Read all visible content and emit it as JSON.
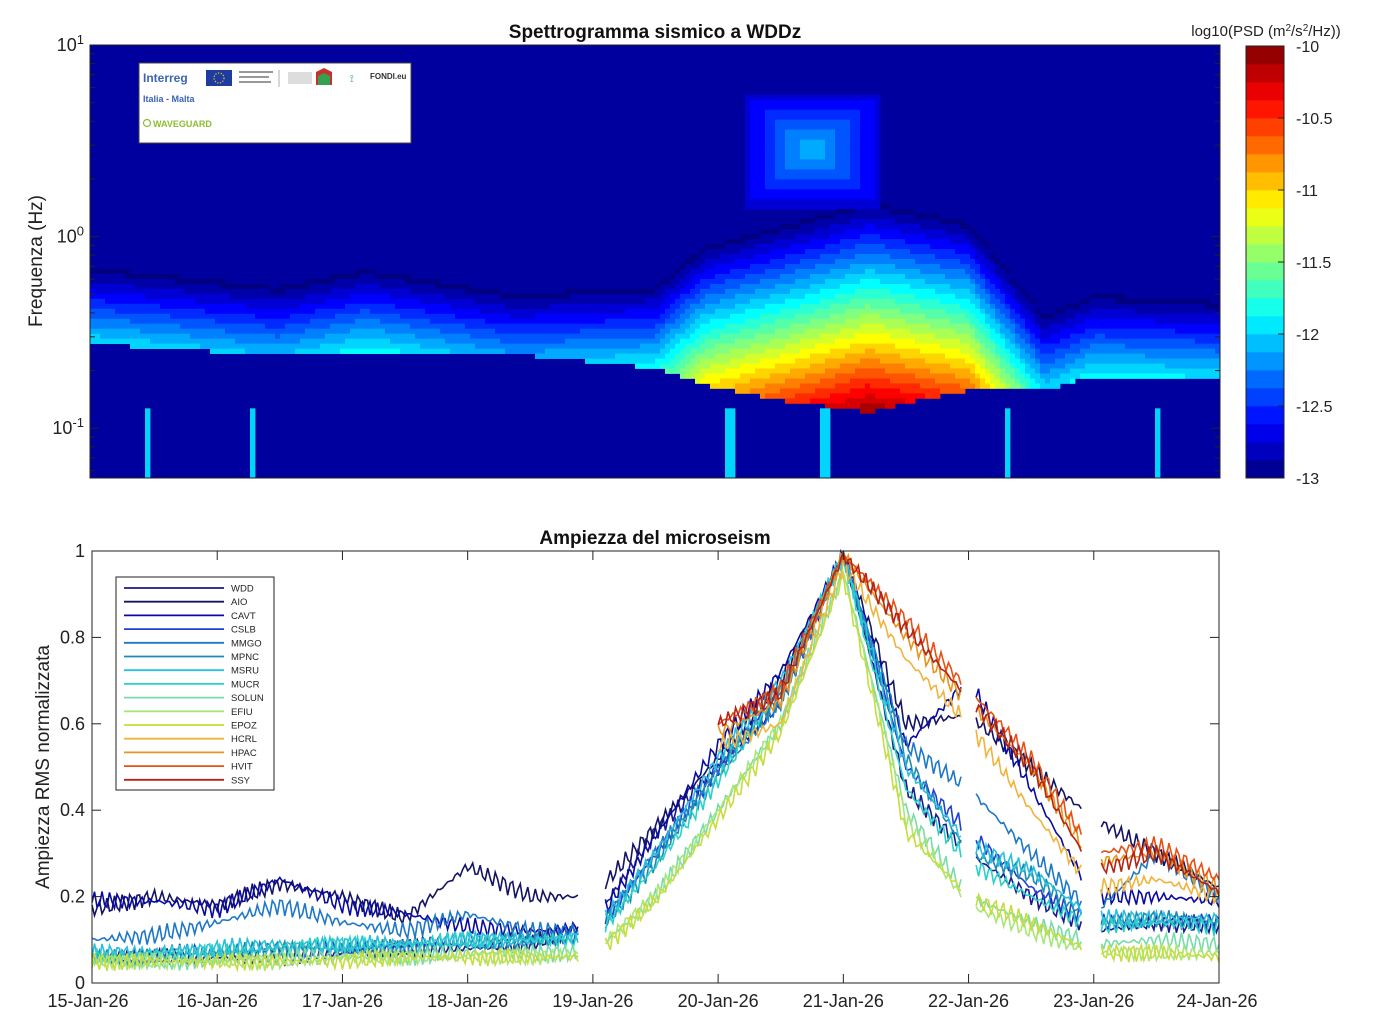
{
  "chart_data": [
    {
      "type": "heatmap",
      "title": "Spettrogramma sismico a WDDz",
      "ylabel": "Frequenza (Hz)",
      "yscale": "log",
      "ylim": [
        0.055,
        10
      ],
      "yticks": [
        {
          "base": "10",
          "exp": "1"
        },
        {
          "base": "10",
          "exp": "0"
        },
        {
          "base": "10",
          "exp": "-1"
        }
      ],
      "x_days": [
        0,
        9
      ],
      "colorbar": {
        "label_prefix": "log10(PSD (m",
        "label_sup1": "2",
        "label_mid": "/s",
        "label_sup2": "2",
        "label_suffix": "/Hz))",
        "range": [
          -13,
          -10
        ],
        "ticks": [
          "-10",
          "-10.5",
          "-11",
          "-11.5",
          "-12",
          "-12.5",
          "-13"
        ],
        "steps": 24
      },
      "energy_band": {
        "day": [
          0,
          0.5,
          1.5,
          2.2,
          3.4,
          4.5,
          4.9,
          5.5,
          6.2,
          7.0,
          7.6,
          8.0,
          9.0
        ],
        "lower_hz": [
          0.3,
          0.28,
          0.26,
          0.27,
          0.26,
          0.22,
          0.18,
          0.15,
          0.13,
          0.17,
          0.17,
          0.2,
          0.2
        ],
        "peak_level": [
          -11.9,
          -11.9,
          -12.0,
          -11.8,
          -12.1,
          -11.8,
          -11.0,
          -10.5,
          -10.0,
          -10.6,
          -11.9,
          -11.8,
          -11.9
        ]
      },
      "logo": {
        "interreg": "Interreg",
        "region": "Italia - Malta",
        "project": "WAVEGUARD",
        "fund": "FONDI.eu"
      }
    },
    {
      "type": "line",
      "title": "Ampiezza del microseism",
      "ylabel": "Ampiezza RMS normalizzata",
      "ylim": [
        0,
        1
      ],
      "yticks": [
        "0",
        "0.2",
        "0.4",
        "0.6",
        "0.8",
        "1"
      ],
      "categories": [
        "15-Jan-26",
        "16-Jan-26",
        "17-Jan-26",
        "18-Jan-26",
        "19-Jan-26",
        "20-Jan-26",
        "21-Jan-26",
        "22-Jan-26",
        "23-Jan-26",
        "24-Jan-26"
      ],
      "gaps": [
        [
          3.9,
          4.1
        ],
        [
          6.95,
          7.05
        ],
        [
          7.9,
          8.05
        ]
      ],
      "series": [
        {
          "name": "WDD",
          "color": "#1a1a8c",
          "x": [
            0,
            0.5,
            1,
            1.5,
            2,
            2.5,
            3,
            3.5,
            4,
            4.5,
            5,
            5.5,
            6,
            6.5,
            7,
            7.5,
            8,
            8.5,
            9
          ],
          "y": [
            0.06,
            0.06,
            0.06,
            0.06,
            0.07,
            0.08,
            0.08,
            0.09,
            0.14,
            0.35,
            0.5,
            0.65,
            0.99,
            0.45,
            0.3,
            0.2,
            0.12,
            0.14,
            0.13
          ]
        },
        {
          "name": "AIO",
          "color": "#141464",
          "x": [
            0,
            0.5,
            1,
            1.5,
            2,
            2.5,
            3,
            3.5,
            4,
            4.5,
            5,
            5.5,
            6,
            6.5,
            7,
            7.5,
            8,
            8.5,
            9
          ],
          "y": [
            0.17,
            0.2,
            0.18,
            0.23,
            0.2,
            0.15,
            0.27,
            0.2,
            0.2,
            0.36,
            0.52,
            0.7,
            0.99,
            0.6,
            0.62,
            0.5,
            0.38,
            0.3,
            0.22
          ]
        },
        {
          "name": "CAVT",
          "color": "#0a0aa0",
          "x": [
            0,
            0.5,
            1,
            1.5,
            2,
            2.5,
            3,
            3.5,
            4,
            4.5,
            5,
            5.5,
            6,
            6.5,
            7,
            7.5,
            8,
            8.5,
            9
          ],
          "y": [
            0.19,
            0.19,
            0.17,
            0.24,
            0.18,
            0.16,
            0.13,
            0.12,
            0.13,
            0.34,
            0.55,
            0.72,
            0.99,
            0.55,
            0.7,
            0.45,
            0.2,
            0.2,
            0.19
          ]
        },
        {
          "name": "CSLB",
          "color": "#2040d0",
          "x": [
            0,
            0.5,
            1,
            1.5,
            2,
            2.5,
            3,
            3.5,
            4,
            4.5,
            5,
            5.5,
            6,
            6.5,
            7,
            7.5,
            8,
            8.5,
            9
          ],
          "y": [
            0.06,
            0.07,
            0.07,
            0.08,
            0.08,
            0.09,
            0.1,
            0.1,
            0.11,
            0.3,
            0.5,
            0.68,
            0.99,
            0.5,
            0.35,
            0.22,
            0.14,
            0.14,
            0.14
          ]
        },
        {
          "name": "MMGO",
          "color": "#1e78c8",
          "x": [
            0,
            0.5,
            1,
            1.5,
            2,
            2.5,
            3,
            3.5,
            4,
            4.5,
            5,
            5.5,
            6,
            6.5,
            7,
            7.5,
            8,
            8.5,
            9
          ],
          "y": [
            0.1,
            0.11,
            0.14,
            0.18,
            0.14,
            0.12,
            0.16,
            0.12,
            0.12,
            0.3,
            0.48,
            0.65,
            0.99,
            0.55,
            0.45,
            0.3,
            0.16,
            0.3,
            0.2
          ]
        },
        {
          "name": "MPNC",
          "color": "#1c8cb4",
          "x": [
            0,
            0.5,
            1,
            1.5,
            2,
            2.5,
            3,
            3.5,
            4,
            4.5,
            5,
            5.5,
            6,
            6.5,
            7,
            7.5,
            8,
            8.5,
            9
          ],
          "y": [
            0.06,
            0.06,
            0.07,
            0.08,
            0.08,
            0.08,
            0.09,
            0.1,
            0.1,
            0.28,
            0.5,
            0.66,
            0.99,
            0.52,
            0.3,
            0.25,
            0.14,
            0.15,
            0.14
          ]
        },
        {
          "name": "MSRU",
          "color": "#28c0dc",
          "x": [
            0,
            0.5,
            1,
            1.5,
            2,
            2.5,
            3,
            3.5,
            4,
            4.5,
            5,
            5.5,
            6,
            6.5,
            7,
            7.5,
            8,
            8.5,
            9
          ],
          "y": [
            0.07,
            0.07,
            0.08,
            0.09,
            0.09,
            0.09,
            0.1,
            0.1,
            0.11,
            0.3,
            0.52,
            0.7,
            0.99,
            0.5,
            0.32,
            0.26,
            0.15,
            0.15,
            0.15
          ]
        },
        {
          "name": "MUCR",
          "color": "#28d2c8",
          "x": [
            0,
            0.5,
            1,
            1.5,
            2,
            2.5,
            3,
            3.5,
            4,
            4.5,
            5,
            5.5,
            6,
            6.5,
            7,
            7.5,
            8,
            8.5,
            9
          ],
          "y": [
            0.06,
            0.07,
            0.07,
            0.08,
            0.09,
            0.09,
            0.1,
            0.1,
            0.1,
            0.27,
            0.47,
            0.68,
            0.99,
            0.45,
            0.28,
            0.2,
            0.13,
            0.14,
            0.13
          ]
        },
        {
          "name": "SOLUN",
          "color": "#78dcaa",
          "x": [
            0,
            0.5,
            1,
            1.5,
            2,
            2.5,
            3,
            3.5,
            4,
            4.5,
            5,
            5.5,
            6,
            6.5,
            7,
            7.5,
            8,
            8.5,
            9
          ],
          "y": [
            0.05,
            0.05,
            0.05,
            0.06,
            0.06,
            0.06,
            0.07,
            0.07,
            0.07,
            0.2,
            0.4,
            0.6,
            0.95,
            0.4,
            0.2,
            0.14,
            0.09,
            0.1,
            0.09
          ]
        },
        {
          "name": "EFIU",
          "color": "#a8e678",
          "x": [
            0,
            0.5,
            1,
            1.5,
            2,
            2.5,
            3,
            3.5,
            4,
            4.5,
            5,
            5.5,
            6,
            6.5,
            7,
            7.5,
            8,
            8.5,
            9
          ],
          "y": [
            0.05,
            0.05,
            0.05,
            0.05,
            0.06,
            0.06,
            0.06,
            0.06,
            0.07,
            0.2,
            0.4,
            0.6,
            0.95,
            0.38,
            0.18,
            0.12,
            0.07,
            0.07,
            0.07
          ]
        },
        {
          "name": "EPOZ",
          "color": "#c8dc3c",
          "x": [
            0,
            0.5,
            1,
            1.5,
            2,
            2.5,
            3,
            3.5,
            4,
            4.5,
            5,
            5.5,
            6,
            6.5,
            7,
            7.5,
            8,
            8.5,
            9
          ],
          "y": [
            0.05,
            0.05,
            0.05,
            0.05,
            0.05,
            0.06,
            0.06,
            0.06,
            0.06,
            0.19,
            0.38,
            0.58,
            0.94,
            0.35,
            0.2,
            0.14,
            0.07,
            0.07,
            0.06
          ]
        },
        {
          "name": "HCRL",
          "color": "#f0b43c",
          "x": [
            0,
            0.5,
            1,
            1.5,
            2,
            2.5,
            3,
            3.5,
            4,
            4.5,
            5,
            5.5,
            6,
            6.5,
            7,
            7.5,
            8,
            8.5,
            9
          ],
          "y": [
            null,
            null,
            null,
            null,
            null,
            null,
            null,
            null,
            null,
            null,
            0.55,
            0.6,
            0.97,
            0.75,
            0.6,
            0.4,
            0.22,
            0.24,
            0.2
          ]
        },
        {
          "name": "HPAC",
          "color": "#e6961e",
          "x": [
            0,
            0.5,
            1,
            1.5,
            2,
            2.5,
            3,
            3.5,
            4,
            4.5,
            5,
            5.5,
            6,
            6.5,
            7,
            7.5,
            8,
            8.5,
            9
          ],
          "y": [
            null,
            null,
            null,
            null,
            null,
            null,
            null,
            null,
            null,
            null,
            0.58,
            0.65,
            0.99,
            0.8,
            0.65,
            0.5,
            0.28,
            0.3,
            0.22
          ]
        },
        {
          "name": "HVIT",
          "color": "#e65014",
          "x": [
            0,
            0.5,
            1,
            1.5,
            2,
            2.5,
            3,
            3.5,
            4,
            4.5,
            5,
            5.5,
            6,
            6.5,
            7,
            7.5,
            8,
            8.5,
            9
          ],
          "y": [
            null,
            null,
            null,
            null,
            null,
            null,
            null,
            null,
            null,
            null,
            0.6,
            0.68,
            0.99,
            0.84,
            0.68,
            0.52,
            0.3,
            0.32,
            0.24
          ]
        },
        {
          "name": "SSY",
          "color": "#b42314",
          "x": [
            0,
            0.5,
            1,
            1.5,
            2,
            2.5,
            3,
            3.5,
            4,
            4.5,
            5,
            5.5,
            6,
            6.5,
            7,
            7.5,
            8,
            8.5,
            9
          ],
          "y": [
            null,
            null,
            null,
            null,
            null,
            null,
            null,
            null,
            null,
            null,
            0.6,
            0.67,
            0.99,
            0.82,
            0.66,
            0.5,
            0.26,
            0.3,
            0.21
          ]
        }
      ]
    }
  ]
}
